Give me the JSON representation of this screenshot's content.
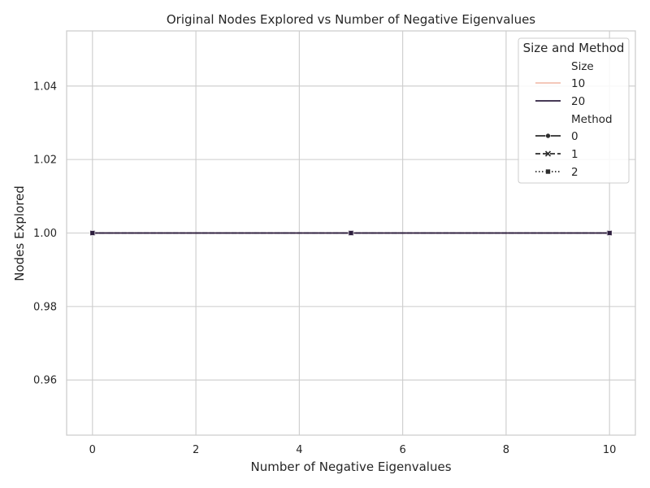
{
  "chart_data": {
    "type": "line",
    "title": "Original Nodes Explored vs Number of Negative Eigenvalues",
    "xlabel": "Number of Negative Eigenvalues",
    "ylabel": "Nodes Explored",
    "xlim": [
      -0.5,
      10.5
    ],
    "ylim": [
      0.945,
      1.055
    ],
    "xticks": [
      0,
      2,
      4,
      6,
      8,
      10
    ],
    "yticks": [
      0.96,
      0.98,
      1.0,
      1.02,
      1.04
    ],
    "ytick_labels": [
      "0.96",
      "0.98",
      "1.00",
      "1.02",
      "1.04"
    ],
    "grid": true,
    "legend": {
      "title": "Size and Method",
      "placement": "top-right",
      "size_header": "Size",
      "method_header": "Method",
      "sizes": [
        {
          "label": "10",
          "color": "#f2c1b0"
        },
        {
          "label": "20",
          "color": "#2d1e3e"
        }
      ],
      "methods": [
        {
          "label": "0",
          "dash": "solid",
          "marker": "circle"
        },
        {
          "label": "1",
          "dash": "dashed",
          "marker": "x"
        },
        {
          "label": "2",
          "dash": "dotted",
          "marker": "square"
        }
      ]
    },
    "x": [
      0,
      5,
      10
    ],
    "series": [
      {
        "size": "10",
        "method": "0",
        "values": [
          1,
          1,
          1
        ]
      },
      {
        "size": "10",
        "method": "1",
        "values": [
          1,
          1,
          1
        ]
      },
      {
        "size": "10",
        "method": "2",
        "values": [
          1,
          1,
          1
        ]
      },
      {
        "size": "20",
        "method": "0",
        "values": [
          1,
          1,
          1
        ]
      },
      {
        "size": "20",
        "method": "1",
        "values": [
          1,
          1,
          1
        ]
      },
      {
        "size": "20",
        "method": "2",
        "values": [
          1,
          1,
          1
        ]
      }
    ]
  }
}
